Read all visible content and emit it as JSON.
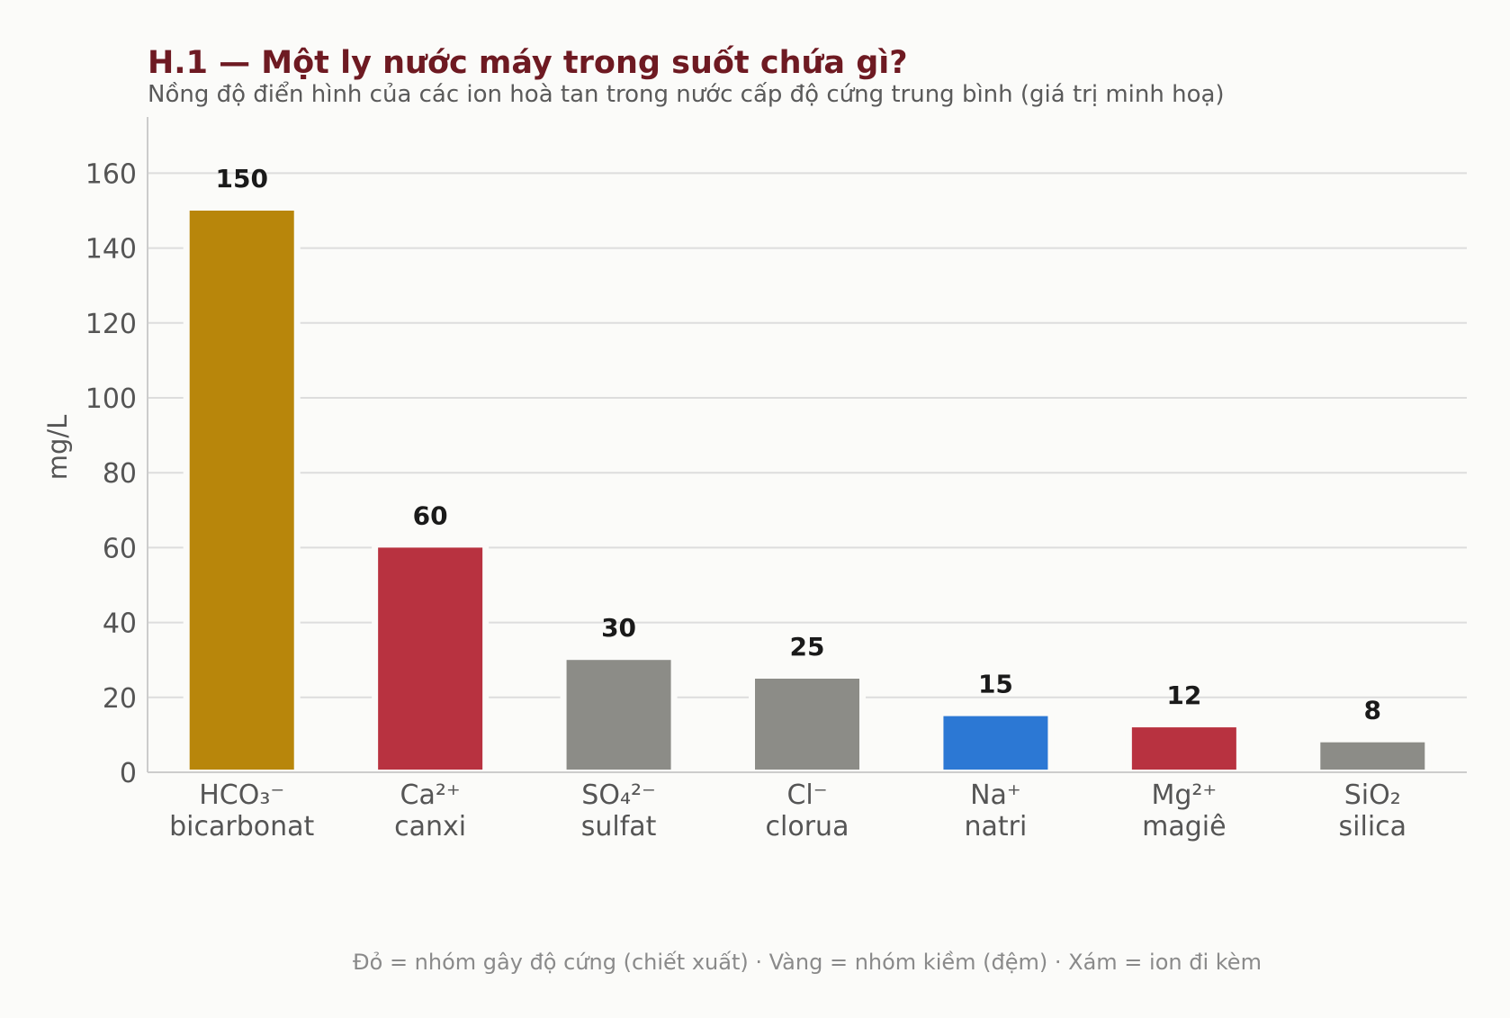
{
  "chart_data": {
    "type": "bar",
    "title": "H.1 — Một ly nước máy trong suốt chứa gì?",
    "subtitle": "Nồng độ điển hình của các ion hoà tan trong nước cấp độ cứng trung bình (giá trị minh hoạ)",
    "xlabel": "",
    "ylabel": "mg/L",
    "ylim": [
      0,
      175
    ],
    "yticks": [
      0,
      20,
      40,
      60,
      80,
      100,
      120,
      140,
      160
    ],
    "grid": true,
    "categories": [
      [
        "HCO₃⁻",
        "bicarbonat"
      ],
      [
        "Ca²⁺",
        "canxi"
      ],
      [
        "SO₄²⁻",
        "sulfat"
      ],
      [
        "Cl⁻",
        "clorua"
      ],
      [
        "Na⁺",
        "natri"
      ],
      [
        "Mg²⁺",
        "magiê"
      ],
      [
        "SiO₂",
        "silica"
      ]
    ],
    "values": [
      150,
      60,
      30,
      25,
      15,
      12,
      8
    ],
    "bar_colors": [
      "#b8860b",
      "#b83240",
      "#8c8c87",
      "#8c8c87",
      "#2c78d4",
      "#b83240",
      "#8c8c87"
    ],
    "footnote": "Đỏ = nhóm gây độ cứng (chiết xuất) · Vàng = nhóm kiềm (đệm) · Xám = ion đi kèm"
  },
  "colors": {
    "background": "#fbfbf9",
    "title": "#6e1a22",
    "grid": "#dddddd",
    "axis": "#cccccc"
  }
}
